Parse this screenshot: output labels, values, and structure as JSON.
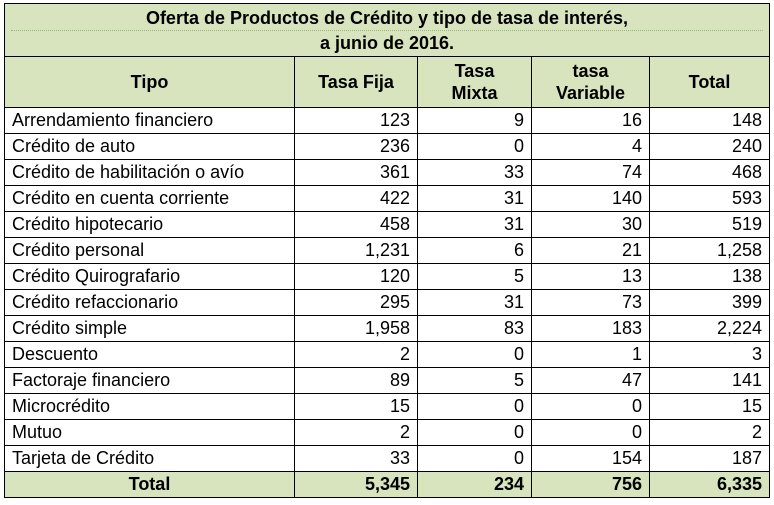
{
  "title": {
    "line1": "Oferta de Productos de Crédito y tipo de tasa de interés,",
    "line2": "a junio de 2016."
  },
  "columns": {
    "tipo": "Tipo",
    "fija": "Tasa Fija",
    "mixta_1": "Tasa",
    "mixta_2": "Mixta",
    "variable_1": "tasa",
    "variable_2": "Variable",
    "total": "Total"
  },
  "rows": [
    {
      "tipo": "Arrendamiento financiero",
      "fija": "123",
      "mixta": "9",
      "variable": "16",
      "total": "148"
    },
    {
      "tipo": "Crédito de auto",
      "fija": "236",
      "mixta": "0",
      "variable": "4",
      "total": "240"
    },
    {
      "tipo": "Crédito de habilitación o avío",
      "fija": "361",
      "mixta": "33",
      "variable": "74",
      "total": "468"
    },
    {
      "tipo": "Crédito en cuenta corriente",
      "fija": "422",
      "mixta": "31",
      "variable": "140",
      "total": "593"
    },
    {
      "tipo": "Crédito hipotecario",
      "fija": "458",
      "mixta": "31",
      "variable": "30",
      "total": "519"
    },
    {
      "tipo": "Crédito personal",
      "fija": "1,231",
      "mixta": "6",
      "variable": "21",
      "total": "1,258"
    },
    {
      "tipo": "Crédito Quirografario",
      "fija": "120",
      "mixta": "5",
      "variable": "13",
      "total": "138"
    },
    {
      "tipo": "Crédito refaccionario",
      "fija": "295",
      "mixta": "31",
      "variable": "73",
      "total": "399"
    },
    {
      "tipo": "Crédito simple",
      "fija": "1,958",
      "mixta": "83",
      "variable": "183",
      "total": "2,224"
    },
    {
      "tipo": "Descuento",
      "fija": "2",
      "mixta": "0",
      "variable": "1",
      "total": "3"
    },
    {
      "tipo": "Factoraje financiero",
      "fija": "89",
      "mixta": "5",
      "variable": "47",
      "total": "141"
    },
    {
      "tipo": "Microcrédito",
      "fija": "15",
      "mixta": "0",
      "variable": "0",
      "total": "15"
    },
    {
      "tipo": "Mutuo",
      "fija": "2",
      "mixta": "0",
      "variable": "0",
      "total": "2"
    },
    {
      "tipo": "Tarjeta de Crédito",
      "fija": "33",
      "mixta": "0",
      "variable": "154",
      "total": "187"
    }
  ],
  "totals": {
    "tipo": "Total",
    "fija": "5,345",
    "mixta": "234",
    "variable": "756",
    "total": "6,335"
  },
  "colors": {
    "header_bg": "#d7e4bd",
    "border": "#000000"
  }
}
